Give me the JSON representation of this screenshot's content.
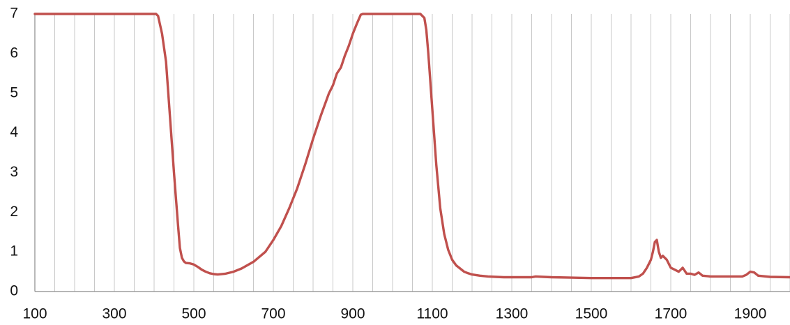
{
  "chart_data": {
    "type": "line",
    "title": "",
    "xlabel": "",
    "ylabel": "",
    "xlim": [
      100,
      2000
    ],
    "ylim": [
      0,
      7
    ],
    "x_tick_step_grid": 50,
    "x_tick_labels": [
      100,
      300,
      500,
      700,
      900,
      1100,
      1300,
      1500,
      1700,
      1900
    ],
    "y_tick_labels": [
      0,
      1,
      2,
      3,
      4,
      5,
      6,
      7
    ],
    "grid": true,
    "legend": "none",
    "colors": {
      "series": "#c0504d",
      "grid": "#c8c8c8",
      "axis": "#8a8a8a"
    },
    "series": [
      {
        "x": [
          100,
          200,
          300,
          400,
          405,
          410,
          420,
          430,
          440,
          450,
          460,
          465,
          470,
          475,
          480,
          490,
          500,
          510,
          520,
          530,
          540,
          550,
          560,
          580,
          600,
          620,
          650,
          680,
          700,
          720,
          740,
          760,
          780,
          800,
          820,
          840,
          850,
          860,
          870,
          880,
          890,
          900,
          910,
          920,
          925,
          1000,
          1070,
          1080,
          1085,
          1090,
          1100,
          1110,
          1120,
          1130,
          1140,
          1150,
          1160,
          1170,
          1180,
          1190,
          1200,
          1220,
          1240,
          1260,
          1280,
          1300,
          1350,
          1360,
          1380,
          1400,
          1450,
          1500,
          1550,
          1600,
          1620,
          1630,
          1640,
          1650,
          1655,
          1660,
          1665,
          1670,
          1675,
          1680,
          1690,
          1700,
          1710,
          1720,
          1730,
          1740,
          1750,
          1760,
          1770,
          1780,
          1800,
          1850,
          1880,
          1890,
          1900,
          1910,
          1920,
          1950,
          2000
        ],
        "y": [
          7.0,
          7.0,
          7.0,
          7.0,
          7.0,
          6.95,
          6.5,
          5.8,
          4.4,
          3.0,
          1.7,
          1.1,
          0.85,
          0.76,
          0.72,
          0.71,
          0.68,
          0.62,
          0.55,
          0.5,
          0.46,
          0.44,
          0.43,
          0.45,
          0.5,
          0.58,
          0.75,
          1.0,
          1.3,
          1.65,
          2.1,
          2.6,
          3.2,
          3.85,
          4.45,
          5.0,
          5.2,
          5.5,
          5.65,
          5.95,
          6.2,
          6.5,
          6.75,
          6.98,
          7.0,
          7.0,
          7.0,
          6.9,
          6.6,
          6.0,
          4.6,
          3.2,
          2.1,
          1.45,
          1.05,
          0.8,
          0.66,
          0.58,
          0.5,
          0.46,
          0.43,
          0.4,
          0.38,
          0.37,
          0.36,
          0.36,
          0.36,
          0.38,
          0.37,
          0.36,
          0.35,
          0.34,
          0.34,
          0.34,
          0.38,
          0.45,
          0.6,
          0.8,
          1.0,
          1.25,
          1.3,
          1.0,
          0.85,
          0.9,
          0.8,
          0.6,
          0.55,
          0.5,
          0.6,
          0.45,
          0.45,
          0.42,
          0.48,
          0.4,
          0.38,
          0.38,
          0.38,
          0.42,
          0.5,
          0.48,
          0.4,
          0.37,
          0.36
        ]
      }
    ]
  }
}
